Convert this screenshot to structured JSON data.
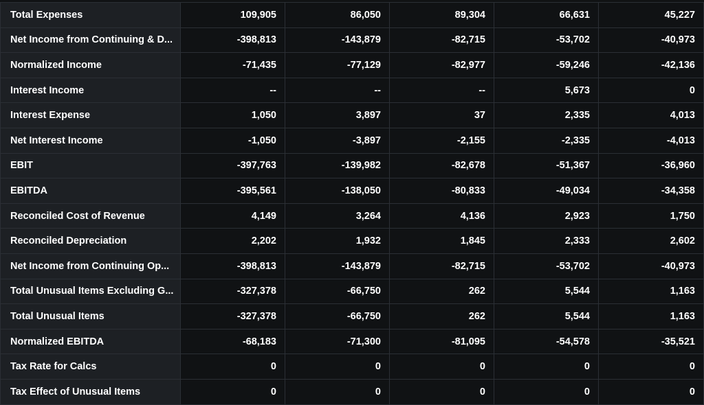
{
  "table": {
    "rows": [
      {
        "label": "Total Expenses",
        "values": [
          "109,905",
          "86,050",
          "89,304",
          "66,631",
          "45,227"
        ]
      },
      {
        "label": "Net Income from Continuing & D...",
        "values": [
          "-398,813",
          "-143,879",
          "-82,715",
          "-53,702",
          "-40,973"
        ]
      },
      {
        "label": "Normalized Income",
        "values": [
          "-71,435",
          "-77,129",
          "-82,977",
          "-59,246",
          "-42,136"
        ]
      },
      {
        "label": "Interest Income",
        "values": [
          "--",
          "--",
          "--",
          "5,673",
          "0"
        ]
      },
      {
        "label": "Interest Expense",
        "values": [
          "1,050",
          "3,897",
          "37",
          "2,335",
          "4,013"
        ]
      },
      {
        "label": "Net Interest Income",
        "values": [
          "-1,050",
          "-3,897",
          "-2,155",
          "-2,335",
          "-4,013"
        ]
      },
      {
        "label": "EBIT",
        "values": [
          "-397,763",
          "-139,982",
          "-82,678",
          "-51,367",
          "-36,960"
        ]
      },
      {
        "label": "EBITDA",
        "values": [
          "-395,561",
          "-138,050",
          "-80,833",
          "-49,034",
          "-34,358"
        ]
      },
      {
        "label": "Reconciled Cost of Revenue",
        "values": [
          "4,149",
          "3,264",
          "4,136",
          "2,923",
          "1,750"
        ]
      },
      {
        "label": "Reconciled Depreciation",
        "values": [
          "2,202",
          "1,932",
          "1,845",
          "2,333",
          "2,602"
        ]
      },
      {
        "label": "Net Income from Continuing Op...",
        "values": [
          "-398,813",
          "-143,879",
          "-82,715",
          "-53,702",
          "-40,973"
        ]
      },
      {
        "label": "Total Unusual Items Excluding G...",
        "values": [
          "-327,378",
          "-66,750",
          "262",
          "5,544",
          "1,163"
        ]
      },
      {
        "label": "Total Unusual Items",
        "values": [
          "-327,378",
          "-66,750",
          "262",
          "5,544",
          "1,163"
        ]
      },
      {
        "label": "Normalized EBITDA",
        "values": [
          "-68,183",
          "-71,300",
          "-81,095",
          "-54,578",
          "-35,521"
        ]
      },
      {
        "label": "Tax Rate for Calcs",
        "values": [
          "0",
          "0",
          "0",
          "0",
          "0"
        ]
      },
      {
        "label": "Tax Effect of Unusual Items",
        "values": [
          "0",
          "0",
          "0",
          "0",
          "0"
        ]
      }
    ]
  }
}
